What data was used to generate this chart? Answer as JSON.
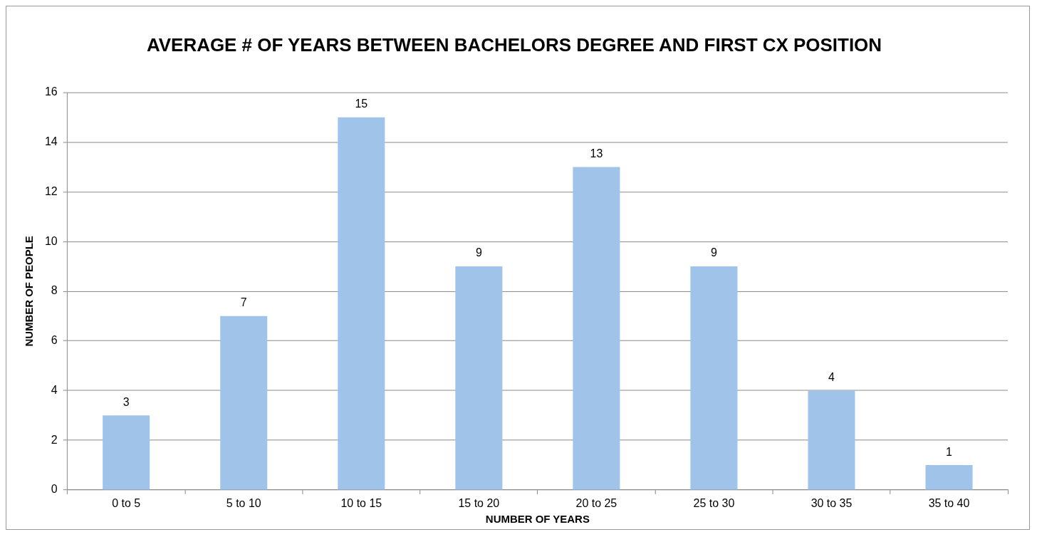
{
  "chart_data": {
    "type": "bar",
    "title": "AVERAGE # OF YEARS BETWEEN BACHELORS DEGREE AND FIRST CX POSITION",
    "xlabel": "NUMBER OF YEARS",
    "ylabel": "NUMBER OF PEOPLE",
    "categories": [
      "0 to 5",
      "5 to 10",
      "10 to 15",
      "15 to 20",
      "20 to 25",
      "25 to 30",
      "30 to 35",
      "35 to 40"
    ],
    "values": [
      3,
      7,
      15,
      9,
      13,
      9,
      4,
      1
    ],
    "color": "#a0c3ea",
    "ylim": [
      0,
      16
    ],
    "yticks": [
      0,
      2,
      4,
      6,
      8,
      10,
      12,
      14,
      16
    ],
    "grid": "y",
    "data_labels": true
  }
}
